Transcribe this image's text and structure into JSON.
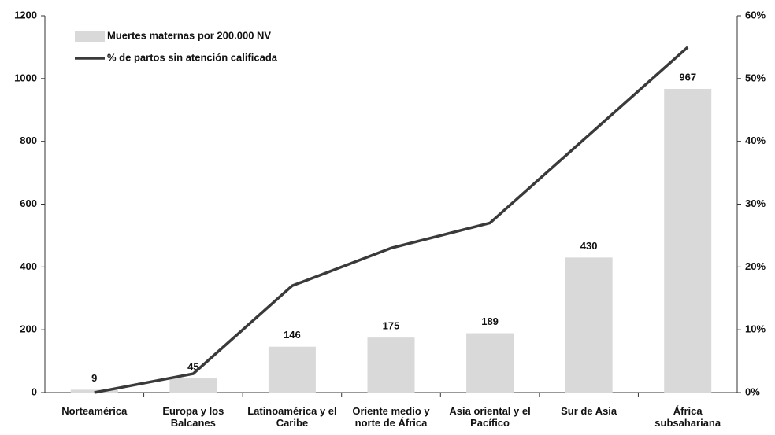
{
  "chart_data": {
    "type": "bar",
    "categories": [
      "Norteamérica",
      "Europa y los Balcanes",
      "Latinoamérica y el Caribe",
      "Oriente medio y norte de África",
      "Asia oriental y el Pacífico",
      "Sur de Asia",
      "África subsahariana"
    ],
    "series": [
      {
        "name": "Muertes maternas por 200.000 NV",
        "type": "bar",
        "color": "#d9d9d9",
        "values": [
          9,
          45,
          146,
          175,
          189,
          430,
          967
        ]
      },
      {
        "name": "% de partos sin atención calificada",
        "type": "line",
        "axis": "y2",
        "color": "#3a3a3a",
        "values": [
          0,
          3,
          17,
          23,
          27,
          41,
          55
        ]
      }
    ],
    "ylim": [
      0,
      1200
    ],
    "yticks": [
      0,
      200,
      400,
      600,
      800,
      1000,
      1200
    ],
    "y2lim": [
      0,
      60
    ],
    "y2ticks": [
      {
        "value": 0,
        "label": "0%"
      },
      {
        "value": 10,
        "label": "10%"
      },
      {
        "value": 20,
        "label": "20%"
      },
      {
        "value": 30,
        "label": "30%"
      },
      {
        "value": 40,
        "label": "40%"
      },
      {
        "value": 50,
        "label": "50%"
      },
      {
        "value": 60,
        "label": "60%"
      }
    ],
    "legend": "top-left"
  }
}
